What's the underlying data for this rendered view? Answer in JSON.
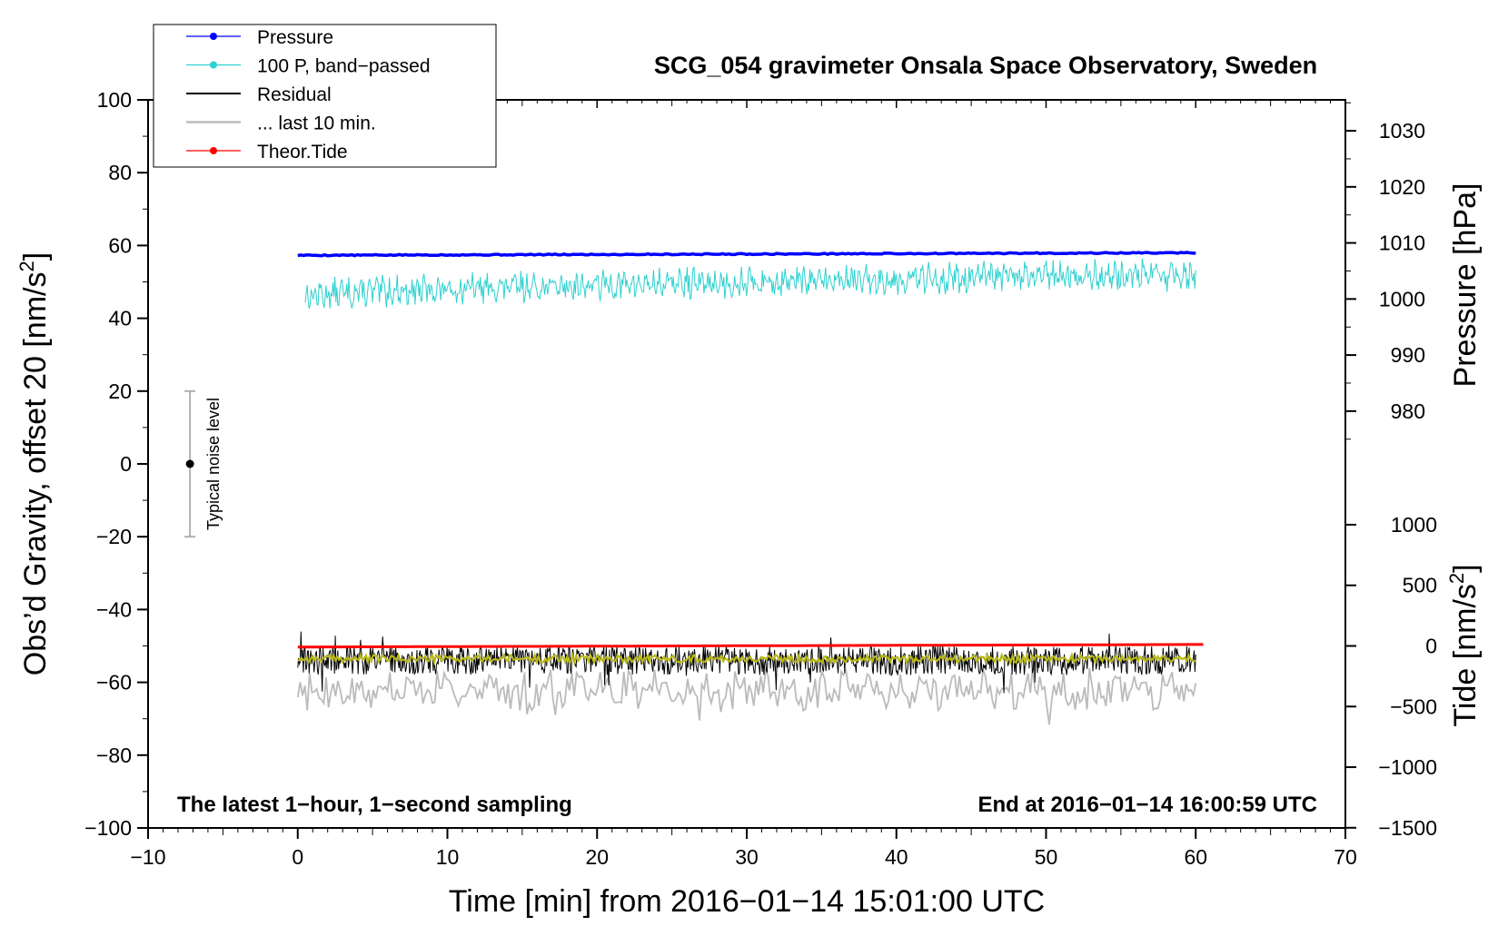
{
  "chart_data": {
    "type": "line",
    "title": "SCG_054 gravimeter Onsala Space Observatory, Sweden",
    "xlabel": "Time [min] from 2016−01−14 15:01:00 UTC",
    "ylabel_main": "Obs’d Gravity, offset 20 [nm/s",
    "ylabel_main_sup": "2",
    "ylabel_main_end": "]",
    "ylabel_pressure": "Pressure [hPa]",
    "ylabel_tide": "Tide [nm/s",
    "ylabel_tide_sup": "2",
    "ylabel_tide_end": "]",
    "xlim": [
      -10,
      70
    ],
    "ylim": [
      -100,
      100
    ],
    "x_ticks": [
      -10,
      0,
      10,
      20,
      30,
      40,
      50,
      60,
      70
    ],
    "x_tick_labels": [
      "−10",
      "0",
      "10",
      "20",
      "30",
      "40",
      "50",
      "60",
      "70"
    ],
    "y_ticks": [
      100,
      80,
      60,
      40,
      20,
      0,
      -20,
      -40,
      -60,
      -80,
      -100
    ],
    "y_tick_labels": [
      "100",
      "80",
      "60",
      "40",
      "20",
      "0",
      "−20",
      "−40",
      "−60",
      "−80",
      "−100"
    ],
    "pressure_axis": {
      "ticks": [
        1030,
        1020,
        1010,
        1000,
        990,
        980
      ],
      "tick_labels": [
        "1030",
        "1020",
        "1010",
        "1000",
        "990",
        "980"
      ],
      "map": {
        "value_a": 1000,
        "gravity_a": 45.3,
        "value_b": 1030,
        "gravity_b": 91.5
      }
    },
    "tide_axis": {
      "ticks": [
        1000,
        500,
        0,
        -500,
        -1000,
        -1500
      ],
      "tick_labels": [
        "1000",
        "500",
        "0",
        "−500",
        "−1000",
        "−1500"
      ],
      "map": {
        "value_a": 0,
        "gravity_a": -50,
        "value_b": 1000,
        "gravity_b": -16.7
      }
    },
    "notes": {
      "left": "The latest 1−hour, 1−second sampling",
      "right": "End at 2016−01−14 16:00:59 UTC"
    },
    "noise_bar": {
      "x": -7.2,
      "center": 0,
      "low": -20,
      "high": 20,
      "label": "Typical noise level"
    },
    "legend": [
      {
        "label": "Pressure",
        "color": "#0000ff",
        "marker": true
      },
      {
        "label": "100 P, band−passed",
        "color": "#30d0d0",
        "marker": true
      },
      {
        "label": "Residual",
        "color": "#000000",
        "marker": false
      },
      {
        "label": "... last 10 min.",
        "color": "#bbbbbb",
        "marker": false
      },
      {
        "label": "Theor.Tide",
        "color": "#ff0000",
        "marker": true
      }
    ],
    "series": [
      {
        "name": "Pressure",
        "color": "#0000ff",
        "x_start": 0,
        "x_end": 60,
        "approx_start": 57.3,
        "approx_end": 58.0
      },
      {
        "name": "100 P, band−passed",
        "color": "#30d0d0",
        "x_start": 0.5,
        "x_end": 60,
        "approx_start": 46,
        "approx_end": 52,
        "spread": 4
      },
      {
        "name": "Residual",
        "color": "#000000",
        "x_start": 0,
        "x_end": 60,
        "approx_center": -54,
        "spread": 4
      },
      {
        "name": "Residual smoothed",
        "color": "#b8b818",
        "x_start": 0,
        "x_end": 60,
        "approx_center": -53.5,
        "spread": 1
      },
      {
        "name": "... last 10 min.",
        "color": "#bbbbbb",
        "x_start": 0,
        "x_end": 60,
        "approx_center": -62,
        "spread": 4
      },
      {
        "name": "Theor.Tide",
        "color": "#ff0000",
        "x_start": 0,
        "x_end": 60.5,
        "approx_start": -50.3,
        "approx_end": -49.6
      }
    ]
  },
  "colors": {
    "axis": "#000000",
    "noise_bar": "#b0b0b0",
    "yellow": "#b8b818"
  }
}
